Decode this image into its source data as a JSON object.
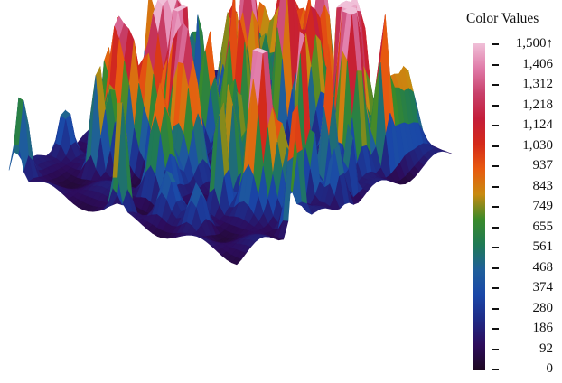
{
  "chart_data": {
    "type": "heatmap",
    "description_type": "3d-surface",
    "legend_title": "Color Values",
    "legend_values": [
      "1,500↑",
      "1,406",
      "1,312",
      "1,218",
      "1,124",
      "1,030",
      "937",
      "843",
      "749",
      "655",
      "561",
      "468",
      "374",
      "280",
      "186",
      "92",
      "0"
    ],
    "value_range": [
      0,
      1500
    ],
    "colormap": [
      "#1e0820",
      "#2d0c5c",
      "#1f2a86",
      "#1a47a8",
      "#1f5f9a",
      "#1f7a55",
      "#3a8a2a",
      "#c88a10",
      "#e85a10",
      "#d42a1a",
      "#c41e3a",
      "#c8406a",
      "#e07aa8",
      "#f0c0d8"
    ],
    "legend_placement": "right"
  }
}
